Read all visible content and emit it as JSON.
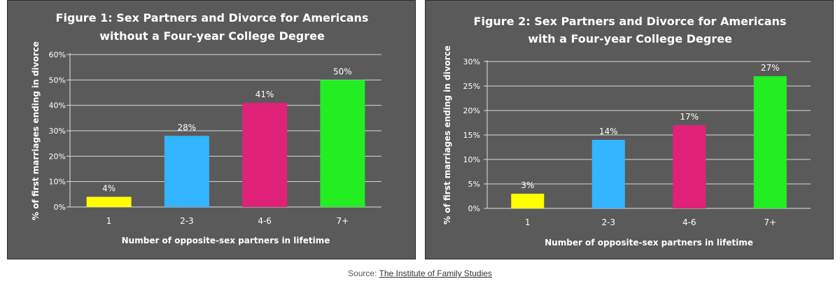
{
  "chart_data": [
    {
      "type": "bar",
      "title": "Figure 1: Sex Partners and Divorce for Americans",
      "subtitle": "without a Four-year College Degree",
      "xlabel": "Number of opposite-sex partners in lifetime",
      "ylabel": "% of first marriages ending in divorce",
      "categories": [
        "1",
        "2-3",
        "4-6",
        "7+"
      ],
      "values": [
        4,
        28,
        41,
        50
      ],
      "value_labels": [
        "4%",
        "28%",
        "41%",
        "50%"
      ],
      "bar_colors": [
        "#ffff00",
        "#33b5ff",
        "#e0217a",
        "#22ee22"
      ],
      "ylim": [
        0,
        60
      ],
      "yticks": [
        "0%",
        "10%",
        "20%",
        "30%",
        "40%",
        "50%",
        "60%"
      ],
      "grid": true
    },
    {
      "type": "bar",
      "title": "Figure 2: Sex Partners and Divorce for Americans",
      "subtitle": "with a Four-year College Degree",
      "xlabel": "Number of opposite-sex partners in lifetime",
      "ylabel": "% of first marriages ending in divorce",
      "categories": [
        "1",
        "2-3",
        "4-6",
        "7+"
      ],
      "values": [
        3,
        14,
        17,
        27
      ],
      "value_labels": [
        "3%",
        "14%",
        "17%",
        "27%"
      ],
      "bar_colors": [
        "#ffff00",
        "#33b5ff",
        "#e0217a",
        "#22ee22"
      ],
      "ylim": [
        0,
        30
      ],
      "yticks": [
        "0%",
        "5%",
        "10%",
        "15%",
        "20%",
        "25%",
        "30%"
      ],
      "grid": true
    }
  ],
  "source": {
    "prefix": "Source: ",
    "link_text": "The Institute of Family Studies"
  }
}
